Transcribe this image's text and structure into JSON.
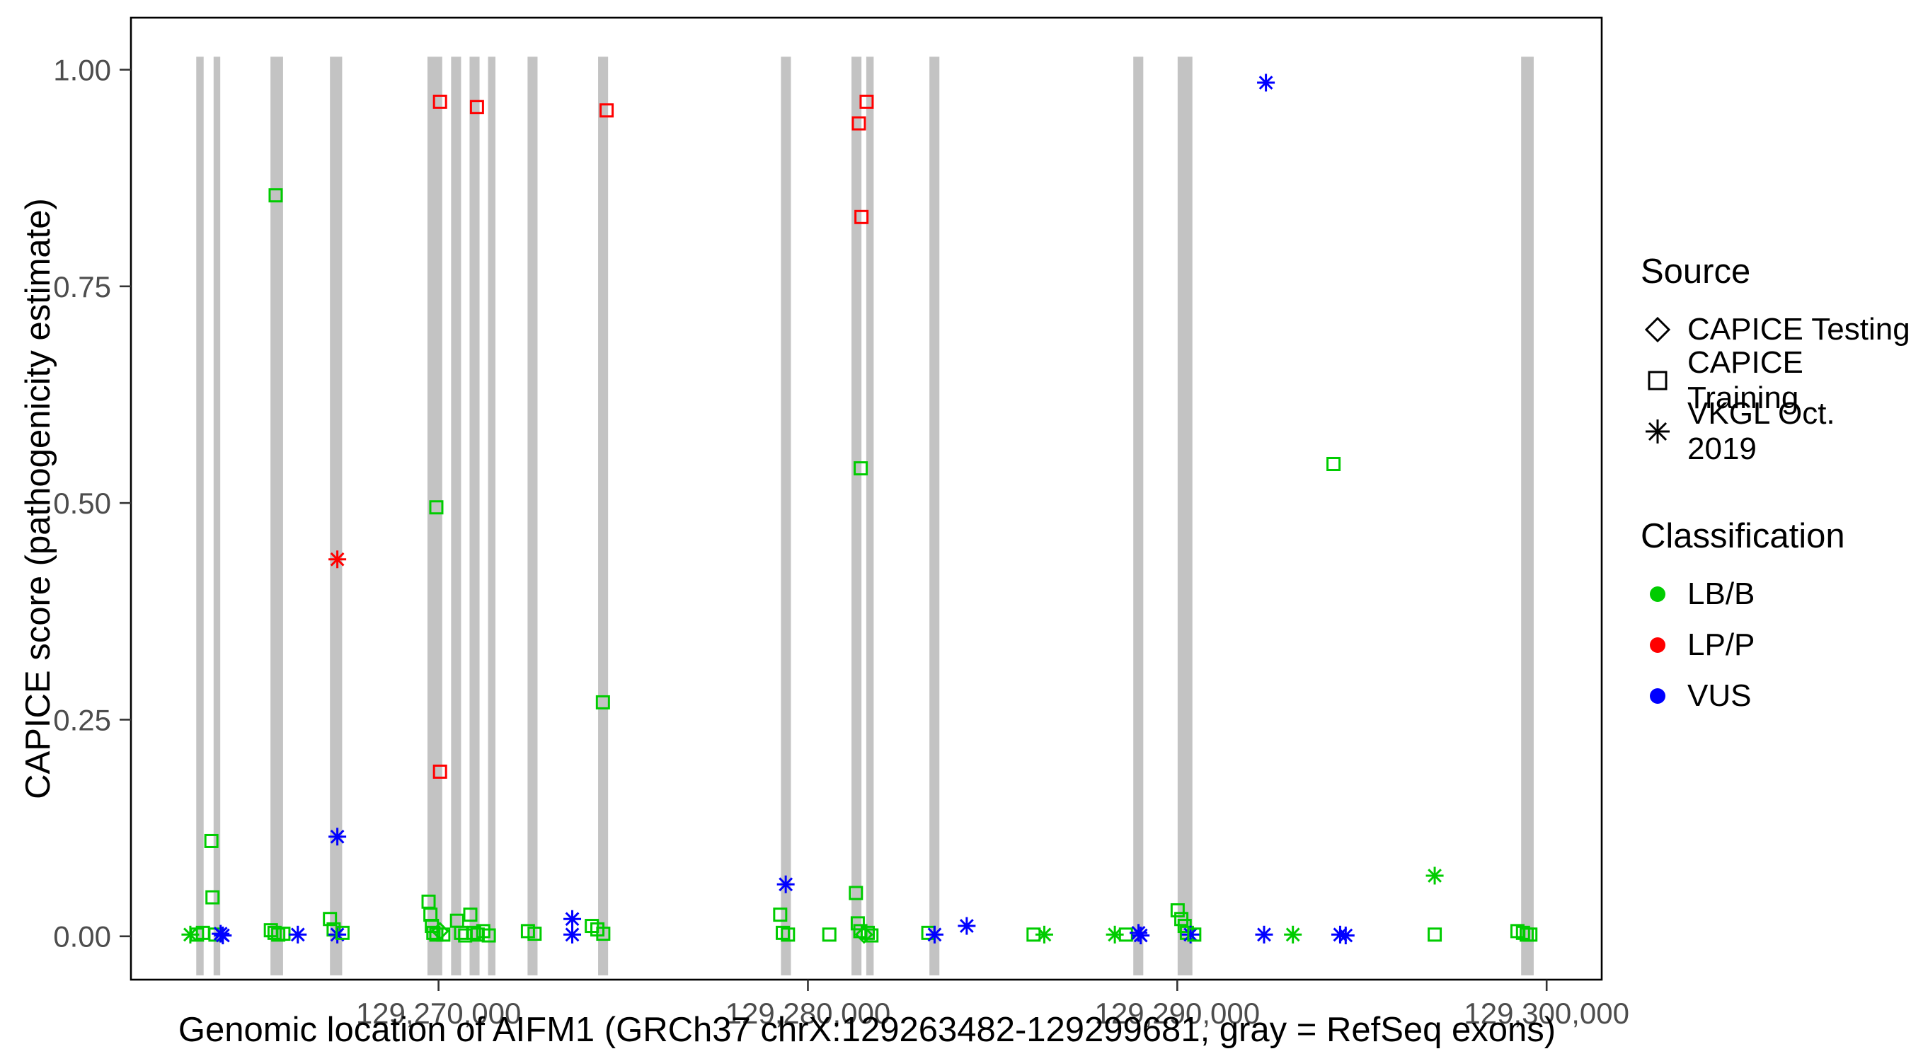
{
  "window": {
    "background": "#FFFFFF"
  },
  "colors": {
    "LB/B": "#00CC00",
    "LP/P": "#FF0000",
    "VUS": "#0000FF",
    "exon": "#C3C3C3",
    "panel_border": "#000000",
    "tick_label": "#4D4D4D",
    "axis_title": "#000000"
  },
  "axes": {
    "x": {
      "title": "Genomic location of AIFM1 (GRCh37 chrX:129263482-129299681, gray = RefSeq exons)",
      "ticks": [
        {
          "value": 129270000,
          "label": "129,270,000"
        },
        {
          "value": 129280000,
          "label": "129,280,000"
        },
        {
          "value": 129290000,
          "label": "129,290,000"
        },
        {
          "value": 129300000,
          "label": "129,300,000"
        }
      ]
    },
    "y": {
      "title": "CAPICE score (pathogenicity estimate)",
      "ticks": [
        {
          "value": 0,
          "label": "0.00"
        },
        {
          "value": 0.25,
          "label": "0.25"
        },
        {
          "value": 0.5,
          "label": "0.50"
        },
        {
          "value": 0.75,
          "label": "0.75"
        },
        {
          "value": 1,
          "label": "1.00"
        }
      ]
    }
  },
  "legend": {
    "source": {
      "title": "Source",
      "items": [
        {
          "shape": "diamond",
          "label": "CAPICE Testing"
        },
        {
          "shape": "square",
          "label": "CAPICE Training"
        },
        {
          "shape": "asterisk",
          "label": "VKGL Oct. 2019"
        }
      ]
    },
    "classification": {
      "title": "Classification",
      "items": [
        {
          "color": "#00CC00",
          "label": "LB/B"
        },
        {
          "color": "#FF0000",
          "label": "LP/P"
        },
        {
          "color": "#0000FF",
          "label": "VUS"
        }
      ]
    }
  },
  "chart_data": {
    "type": "scatter",
    "title": "",
    "xlabel": "Genomic location of AIFM1 (GRCh37 chrX:129263482-129299681, gray = RefSeq exons)",
    "ylabel": "CAPICE score (pathogenicity estimate)",
    "xlim": [
      129261672,
      129301491
    ],
    "ylim": [
      -0.05,
      1.06
    ],
    "grid": false,
    "legend_position": "right",
    "source_shape_map": {
      "CAPICE Testing": "diamond",
      "CAPICE Training": "square",
      "VKGL Oct. 2019": "asterisk"
    },
    "exons": [
      [
        129263440,
        129263640
      ],
      [
        129263910,
        129264090
      ],
      [
        129265450,
        129265790
      ],
      [
        129267060,
        129267390
      ],
      [
        129269700,
        129270100
      ],
      [
        129270340,
        129270610
      ],
      [
        129270840,
        129271110
      ],
      [
        129271340,
        129271540
      ],
      [
        129272410,
        129272680
      ],
      [
        129274320,
        129274590
      ],
      [
        129279270,
        129279540
      ],
      [
        129281180,
        129281450
      ],
      [
        129281580,
        129281780
      ],
      [
        129283290,
        129283560
      ],
      [
        129288810,
        129289080
      ],
      [
        129290010,
        129290410
      ],
      [
        129299310,
        129299650
      ]
    ],
    "points": [
      {
        "x": 129265590,
        "y": 0.855,
        "cls": "LB/B",
        "src": "CAPICE Training"
      },
      {
        "x": 129269940,
        "y": 0.495,
        "cls": "LB/B",
        "src": "CAPICE Training"
      },
      {
        "x": 129274450,
        "y": 0.27,
        "cls": "LB/B",
        "src": "CAPICE Training"
      },
      {
        "x": 129281430,
        "y": 0.54,
        "cls": "LB/B",
        "src": "CAPICE Training"
      },
      {
        "x": 129294230,
        "y": 0.545,
        "cls": "LB/B",
        "src": "CAPICE Training"
      },
      {
        "x": 129263850,
        "y": 0.11,
        "cls": "LB/B",
        "src": "CAPICE Training"
      },
      {
        "x": 129263880,
        "y": 0.045,
        "cls": "LB/B",
        "src": "CAPICE Training"
      },
      {
        "x": 129270040,
        "y": 0.963,
        "cls": "LP/P",
        "src": "CAPICE Training"
      },
      {
        "x": 129271040,
        "y": 0.957,
        "cls": "LP/P",
        "src": "CAPICE Training"
      },
      {
        "x": 129274550,
        "y": 0.953,
        "cls": "LP/P",
        "src": "CAPICE Training"
      },
      {
        "x": 129281590,
        "y": 0.963,
        "cls": "LP/P",
        "src": "CAPICE Training"
      },
      {
        "x": 129281380,
        "y": 0.938,
        "cls": "LP/P",
        "src": "CAPICE Training"
      },
      {
        "x": 129281450,
        "y": 0.83,
        "cls": "LP/P",
        "src": "CAPICE Training"
      },
      {
        "x": 129270040,
        "y": 0.19,
        "cls": "LP/P",
        "src": "CAPICE Training"
      },
      {
        "x": 129267260,
        "y": 0.435,
        "cls": "LP/P",
        "src": "VKGL Oct. 2019"
      },
      {
        "x": 129292400,
        "y": 0.985,
        "cls": "VUS",
        "src": "VKGL Oct. 2019"
      },
      {
        "x": 129267260,
        "y": 0.115,
        "cls": "VUS",
        "src": "VKGL Oct. 2019"
      },
      {
        "x": 129279400,
        "y": 0.06,
        "cls": "VUS",
        "src": "VKGL Oct. 2019"
      },
      {
        "x": 129273620,
        "y": 0.02,
        "cls": "VUS",
        "src": "VKGL Oct. 2019"
      },
      {
        "x": 129284300,
        "y": 0.012,
        "cls": "VUS",
        "src": "VKGL Oct. 2019"
      },
      {
        "x": 129296970,
        "y": 0.07,
        "cls": "LB/B",
        "src": "VKGL Oct. 2019"
      },
      {
        "x": 129263280,
        "y": 0.002,
        "cls": "LB/B",
        "src": "VKGL Oct. 2019"
      },
      {
        "x": 129263460,
        "y": 0.002,
        "cls": "LB/B",
        "src": "CAPICE Training"
      },
      {
        "x": 129263620,
        "y": 0.004,
        "cls": "LB/B",
        "src": "CAPICE Training"
      },
      {
        "x": 129263960,
        "y": 0.002,
        "cls": "LB/B",
        "src": "CAPICE Training"
      },
      {
        "x": 129264100,
        "y": 0.003,
        "cls": "VUS",
        "src": "VKGL Oct. 2019"
      },
      {
        "x": 129264160,
        "y": 0.001,
        "cls": "VUS",
        "src": "VKGL Oct. 2019"
      },
      {
        "x": 129265460,
        "y": 0.007,
        "cls": "LB/B",
        "src": "CAPICE Training"
      },
      {
        "x": 129265560,
        "y": 0.004,
        "cls": "LB/B",
        "src": "CAPICE Training"
      },
      {
        "x": 129265660,
        "y": 0.002,
        "cls": "LB/B",
        "src": "CAPICE Training"
      },
      {
        "x": 129265800,
        "y": 0.003,
        "cls": "LB/B",
        "src": "CAPICE Training"
      },
      {
        "x": 129266190,
        "y": 0.002,
        "cls": "VUS",
        "src": "VKGL Oct. 2019"
      },
      {
        "x": 129267060,
        "y": 0.02,
        "cls": "LB/B",
        "src": "CAPICE Training"
      },
      {
        "x": 129267160,
        "y": 0.008,
        "cls": "LB/B",
        "src": "CAPICE Training"
      },
      {
        "x": 129267260,
        "y": 0.002,
        "cls": "VUS",
        "src": "VKGL Oct. 2019"
      },
      {
        "x": 129267400,
        "y": 0.004,
        "cls": "LB/B",
        "src": "CAPICE Training"
      },
      {
        "x": 129269730,
        "y": 0.04,
        "cls": "LB/B",
        "src": "CAPICE Training"
      },
      {
        "x": 129269780,
        "y": 0.025,
        "cls": "LB/B",
        "src": "CAPICE Training"
      },
      {
        "x": 129269820,
        "y": 0.012,
        "cls": "LB/B",
        "src": "CAPICE Training"
      },
      {
        "x": 129269860,
        "y": 0.004,
        "cls": "LB/B",
        "src": "CAPICE Training"
      },
      {
        "x": 129269940,
        "y": 0.002,
        "cls": "LB/B",
        "src": "CAPICE Training"
      },
      {
        "x": 129270040,
        "y": 0.006,
        "cls": "LB/B",
        "src": "CAPICE Testing"
      },
      {
        "x": 129270130,
        "y": 0.002,
        "cls": "LB/B",
        "src": "CAPICE Training"
      },
      {
        "x": 129270500,
        "y": 0.018,
        "cls": "LB/B",
        "src": "CAPICE Training"
      },
      {
        "x": 129270610,
        "y": 0.004,
        "cls": "LB/B",
        "src": "CAPICE Training"
      },
      {
        "x": 129270720,
        "y": 0.001,
        "cls": "LB/B",
        "src": "CAPICE Training"
      },
      {
        "x": 129270860,
        "y": 0.025,
        "cls": "LB/B",
        "src": "CAPICE Training"
      },
      {
        "x": 129270960,
        "y": 0.004,
        "cls": "LB/B",
        "src": "CAPICE Training"
      },
      {
        "x": 129271060,
        "y": 0.002,
        "cls": "LB/B",
        "src": "CAPICE Training"
      },
      {
        "x": 129271210,
        "y": 0.006,
        "cls": "LB/B",
        "src": "CAPICE Training"
      },
      {
        "x": 129271360,
        "y": 0.001,
        "cls": "LB/B",
        "src": "CAPICE Training"
      },
      {
        "x": 129272420,
        "y": 0.006,
        "cls": "LB/B",
        "src": "CAPICE Training"
      },
      {
        "x": 129272600,
        "y": 0.003,
        "cls": "LB/B",
        "src": "CAPICE Training"
      },
      {
        "x": 129273620,
        "y": 0.002,
        "cls": "VUS",
        "src": "VKGL Oct. 2019"
      },
      {
        "x": 129274150,
        "y": 0.012,
        "cls": "LB/B",
        "src": "CAPICE Training"
      },
      {
        "x": 129274300,
        "y": 0.008,
        "cls": "LB/B",
        "src": "CAPICE Training"
      },
      {
        "x": 129274460,
        "y": 0.003,
        "cls": "LB/B",
        "src": "CAPICE Training"
      },
      {
        "x": 129279250,
        "y": 0.025,
        "cls": "LB/B",
        "src": "CAPICE Training"
      },
      {
        "x": 129279320,
        "y": 0.004,
        "cls": "LB/B",
        "src": "CAPICE Training"
      },
      {
        "x": 129279460,
        "y": 0.002,
        "cls": "LB/B",
        "src": "CAPICE Training"
      },
      {
        "x": 129280580,
        "y": 0.002,
        "cls": "LB/B",
        "src": "CAPICE Training"
      },
      {
        "x": 129281300,
        "y": 0.05,
        "cls": "LB/B",
        "src": "CAPICE Training"
      },
      {
        "x": 129281350,
        "y": 0.015,
        "cls": "LB/B",
        "src": "CAPICE Training"
      },
      {
        "x": 129281420,
        "y": 0.006,
        "cls": "LB/B",
        "src": "CAPICE Training"
      },
      {
        "x": 129281520,
        "y": 0.002,
        "cls": "LB/B",
        "src": "CAPICE Testing"
      },
      {
        "x": 129281620,
        "y": 0.004,
        "cls": "LB/B",
        "src": "CAPICE Training"
      },
      {
        "x": 129281720,
        "y": 0.001,
        "cls": "LB/B",
        "src": "CAPICE Training"
      },
      {
        "x": 129283260,
        "y": 0.004,
        "cls": "LB/B",
        "src": "CAPICE Training"
      },
      {
        "x": 129283430,
        "y": 0.002,
        "cls": "VUS",
        "src": "VKGL Oct. 2019"
      },
      {
        "x": 129286110,
        "y": 0.002,
        "cls": "LB/B",
        "src": "CAPICE Training"
      },
      {
        "x": 129286400,
        "y": 0.002,
        "cls": "LB/B",
        "src": "VKGL Oct. 2019"
      },
      {
        "x": 129288310,
        "y": 0.002,
        "cls": "LB/B",
        "src": "VKGL Oct. 2019"
      },
      {
        "x": 129288610,
        "y": 0.002,
        "cls": "LB/B",
        "src": "CAPICE Training"
      },
      {
        "x": 129288950,
        "y": 0.004,
        "cls": "VUS",
        "src": "VKGL Oct. 2019"
      },
      {
        "x": 129289010,
        "y": 0.001,
        "cls": "VUS",
        "src": "VKGL Oct. 2019"
      },
      {
        "x": 129290010,
        "y": 0.03,
        "cls": "LB/B",
        "src": "CAPICE Training"
      },
      {
        "x": 129290110,
        "y": 0.02,
        "cls": "LB/B",
        "src": "CAPICE Training"
      },
      {
        "x": 129290200,
        "y": 0.012,
        "cls": "LB/B",
        "src": "CAPICE Training"
      },
      {
        "x": 129290260,
        "y": 0.004,
        "cls": "LB/B",
        "src": "CAPICE Training"
      },
      {
        "x": 129290360,
        "y": 0.002,
        "cls": "VUS",
        "src": "VKGL Oct. 2019"
      },
      {
        "x": 129290460,
        "y": 0.002,
        "cls": "LB/B",
        "src": "CAPICE Training"
      },
      {
        "x": 129292350,
        "y": 0.002,
        "cls": "VUS",
        "src": "VKGL Oct. 2019"
      },
      {
        "x": 129293130,
        "y": 0.002,
        "cls": "LB/B",
        "src": "VKGL Oct. 2019"
      },
      {
        "x": 129294410,
        "y": 0.002,
        "cls": "VUS",
        "src": "VKGL Oct. 2019"
      },
      {
        "x": 129294560,
        "y": 0.001,
        "cls": "VUS",
        "src": "VKGL Oct. 2019"
      },
      {
        "x": 129296970,
        "y": 0.002,
        "cls": "LB/B",
        "src": "CAPICE Training"
      },
      {
        "x": 129299210,
        "y": 0.006,
        "cls": "LB/B",
        "src": "CAPICE Training"
      },
      {
        "x": 129299360,
        "y": 0.004,
        "cls": "LB/B",
        "src": "CAPICE Training"
      },
      {
        "x": 129299460,
        "y": 0.002,
        "cls": "LB/B",
        "src": "CAPICE Training"
      },
      {
        "x": 129299560,
        "y": 0.002,
        "cls": "LB/B",
        "src": "CAPICE Training"
      }
    ]
  }
}
